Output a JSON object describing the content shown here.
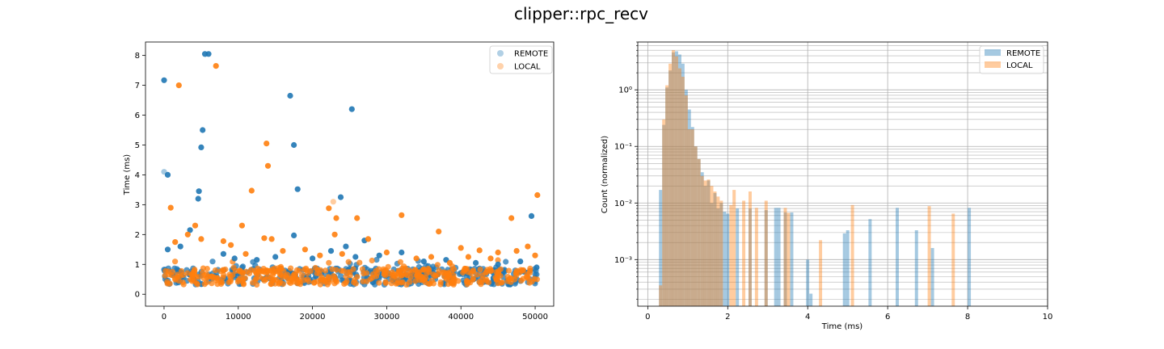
{
  "figure": {
    "title": "clipper::rpc_recv"
  },
  "colors": {
    "remote": "#1f77b4",
    "local": "#ff7f0e"
  },
  "chart_data": [
    {
      "type": "scatter",
      "xlabel": "",
      "ylabel": "Time (ms)",
      "xlim": [
        -2500,
        52500
      ],
      "ylim": [
        -0.4,
        8.45
      ],
      "xticks": [
        0,
        10000,
        20000,
        30000,
        40000,
        50000
      ],
      "yticks": [
        0,
        1,
        2,
        3,
        4,
        5,
        6,
        7,
        8
      ],
      "grid": false,
      "legend": {
        "placement": "top-right",
        "entries": [
          "REMOTE",
          "LOCAL"
        ]
      },
      "series": [
        {
          "name": "REMOTE",
          "color": "#1f77b4",
          "points": [
            [
              0,
              7.17
            ],
            [
              0,
              4.1
            ],
            [
              500,
              4.0
            ],
            [
              5500,
              8.05
            ],
            [
              6000,
              8.05
            ],
            [
              5200,
              5.5
            ],
            [
              5000,
              4.92
            ],
            [
              4700,
              3.45
            ],
            [
              4600,
              3.2
            ],
            [
              3500,
              2.15
            ],
            [
              17000,
              6.65
            ],
            [
              17500,
              5.0
            ],
            [
              18000,
              3.52
            ],
            [
              25300,
              6.2
            ],
            [
              23800,
              3.25
            ],
            [
              17500,
              1.97
            ],
            [
              22500,
              1.45
            ],
            [
              24500,
              1.6
            ],
            [
              500,
              1.5
            ],
            [
              2200,
              1.6
            ],
            [
              8000,
              1.35
            ],
            [
              9500,
              1.2
            ],
            [
              12500,
              1.15
            ],
            [
              15000,
              1.25
            ],
            [
              20000,
              1.2
            ],
            [
              25800,
              1.25
            ],
            [
              27000,
              1.8
            ],
            [
              29000,
              1.3
            ],
            [
              32000,
              1.4
            ],
            [
              35000,
              1.1
            ],
            [
              38000,
              1.15
            ],
            [
              42000,
              1.05
            ],
            [
              45000,
              1.0
            ],
            [
              49500,
              2.62
            ],
            [
              48000,
              1.1
            ],
            [
              50200,
              0.9
            ]
          ]
        },
        {
          "name": "LOCAL",
          "color": "#ff7f0e",
          "points": [
            [
              2000,
              7.0
            ],
            [
              7000,
              7.65
            ],
            [
              13800,
              5.05
            ],
            [
              14000,
              4.3
            ],
            [
              11800,
              3.47
            ],
            [
              22800,
              3.1
            ],
            [
              22200,
              2.88
            ],
            [
              23200,
              2.55
            ],
            [
              26000,
              2.55
            ],
            [
              32000,
              2.65
            ],
            [
              37000,
              2.1
            ],
            [
              46800,
              2.55
            ],
            [
              50300,
              3.32
            ],
            [
              900,
              2.9
            ],
            [
              3200,
              2.0
            ],
            [
              4200,
              2.3
            ],
            [
              5000,
              1.85
            ],
            [
              10500,
              2.3
            ],
            [
              13500,
              1.88
            ],
            [
              14500,
              1.85
            ],
            [
              23000,
              2.0
            ],
            [
              27500,
              1.85
            ],
            [
              40000,
              1.55
            ],
            [
              42500,
              1.47
            ],
            [
              45000,
              1.4
            ],
            [
              1500,
              1.75
            ],
            [
              8000,
              1.78
            ],
            [
              9000,
              1.65
            ],
            [
              11000,
              1.35
            ],
            [
              16000,
              1.45
            ],
            [
              19000,
              1.5
            ],
            [
              21000,
              1.3
            ],
            [
              24000,
              1.35
            ],
            [
              30000,
              1.4
            ],
            [
              34000,
              1.2
            ],
            [
              36000,
              1.25
            ],
            [
              41000,
              1.25
            ],
            [
              44000,
              1.2
            ],
            [
              47500,
              1.45
            ],
            [
              49000,
              1.6
            ],
            [
              50000,
              1.3
            ],
            [
              38500,
              1.05
            ]
          ]
        }
      ]
    },
    {
      "type": "bar",
      "xlabel": "Time (ms)",
      "ylabel": "Count (normalized)",
      "xlim": [
        -0.25,
        10
      ],
      "ylim": [
        0.00015,
        7
      ],
      "yscale": "log",
      "bin_width": 0.08,
      "xticks": [
        0,
        2,
        4,
        6,
        8,
        10
      ],
      "yticks": [
        0.001,
        0.01,
        0.1,
        1
      ],
      "ytick_labels": [
        "10⁻³",
        "10⁻²",
        "10⁻¹",
        "10⁰"
      ],
      "grid": true,
      "legend": {
        "placement": "top-right",
        "entries": [
          "REMOTE",
          "LOCAL"
        ]
      },
      "series": [
        {
          "name": "REMOTE",
          "color": "#1f77b4",
          "bins": [
            [
              0.28,
              0.017
            ],
            [
              0.36,
              0.24
            ],
            [
              0.44,
              1.1
            ],
            [
              0.52,
              2.2
            ],
            [
              0.6,
              4.6
            ],
            [
              0.68,
              4.8
            ],
            [
              0.76,
              4.2
            ],
            [
              0.84,
              2.9
            ],
            [
              0.92,
              1.0
            ],
            [
              1.0,
              0.45
            ],
            [
              1.08,
              0.22
            ],
            [
              1.16,
              0.1
            ],
            [
              1.24,
              0.06
            ],
            [
              1.32,
              0.035
            ],
            [
              1.4,
              0.02
            ],
            [
              1.48,
              0.025
            ],
            [
              1.56,
              0.01
            ],
            [
              1.64,
              0.015
            ],
            [
              1.72,
              0.008
            ],
            [
              1.8,
              0.01
            ],
            [
              1.88,
              0.007
            ],
            [
              1.96,
              0.0065
            ],
            [
              2.2,
              0.008
            ],
            [
              2.52,
              0.008
            ],
            [
              2.92,
              0.0075
            ],
            [
              3.16,
              0.0082
            ],
            [
              3.24,
              0.0082
            ],
            [
              3.4,
              0.0068
            ],
            [
              3.56,
              0.0068
            ],
            [
              3.96,
              0.001
            ],
            [
              4.04,
              0.00025
            ],
            [
              4.88,
              0.0029
            ],
            [
              4.96,
              0.0033
            ],
            [
              5.52,
              0.0052
            ],
            [
              6.2,
              0.0082
            ],
            [
              6.68,
              0.0033
            ],
            [
              7.08,
              0.0016
            ],
            [
              8.0,
              0.0082
            ]
          ]
        },
        {
          "name": "LOCAL",
          "color": "#ff7f0e",
          "bins": [
            [
              0.28,
              0.00035
            ],
            [
              0.36,
              0.3
            ],
            [
              0.44,
              1.2
            ],
            [
              0.52,
              2.9
            ],
            [
              0.6,
              5.0
            ],
            [
              0.68,
              3.9
            ],
            [
              0.76,
              2.4
            ],
            [
              0.84,
              1.7
            ],
            [
              0.92,
              0.8
            ],
            [
              1.0,
              0.2
            ],
            [
              1.08,
              0.2
            ],
            [
              1.16,
              0.1
            ],
            [
              1.24,
              0.06
            ],
            [
              1.32,
              0.03
            ],
            [
              1.4,
              0.025
            ],
            [
              1.48,
              0.026
            ],
            [
              1.56,
              0.02
            ],
            [
              1.64,
              0.016
            ],
            [
              1.72,
              0.013
            ],
            [
              1.8,
              0.011
            ],
            [
              2.04,
              0.0092
            ],
            [
              2.12,
              0.017
            ],
            [
              2.36,
              0.011
            ],
            [
              2.52,
              0.016
            ],
            [
              2.68,
              0.0082
            ],
            [
              2.92,
              0.011
            ],
            [
              3.4,
              0.0082
            ],
            [
              3.48,
              0.0067
            ],
            [
              4.28,
              0.0022
            ],
            [
              5.08,
              0.0092
            ],
            [
              7.0,
              0.0088
            ],
            [
              7.6,
              0.0065
            ]
          ]
        }
      ]
    }
  ]
}
